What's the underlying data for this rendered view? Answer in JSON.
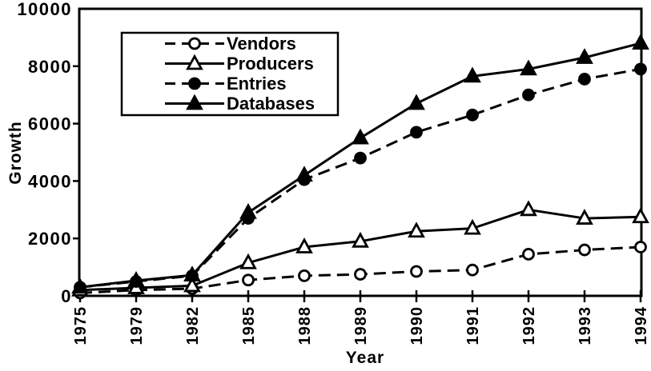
{
  "chart_data": {
    "type": "line",
    "title": "",
    "xlabel": "Year",
    "ylabel": "Growth",
    "categories": [
      "1975",
      "1979",
      "1982",
      "1985",
      "1988",
      "1989",
      "1990",
      "1991",
      "1992",
      "1993",
      "1994"
    ],
    "ylim": [
      0,
      10000
    ],
    "yticks": [
      0,
      2000,
      4000,
      6000,
      8000,
      10000
    ],
    "grid": false,
    "legend_position": "inside-top-left",
    "series": [
      {
        "name": "Vendors",
        "line": "dashed",
        "marker": "open-circle",
        "values": [
          100,
          200,
          250,
          550,
          700,
          750,
          850,
          900,
          1450,
          1600,
          1700
        ]
      },
      {
        "name": "Producers",
        "line": "solid",
        "marker": "open-triangle",
        "values": [
          200,
          280,
          350,
          1150,
          1700,
          1900,
          2250,
          2350,
          3000,
          2700,
          2750
        ]
      },
      {
        "name": "Entries",
        "line": "dashed",
        "marker": "filled-circle",
        "values": [
          300,
          500,
          700,
          2700,
          4050,
          4800,
          5700,
          6300,
          7000,
          7550,
          7900
        ]
      },
      {
        "name": "Databases",
        "line": "solid",
        "marker": "filled-triangle",
        "values": [
          300,
          530,
          720,
          2900,
          4200,
          5500,
          6700,
          7650,
          7900,
          8300,
          8800
        ]
      }
    ],
    "colors": {
      "ink": "#000000",
      "background": "#ffffff"
    }
  }
}
